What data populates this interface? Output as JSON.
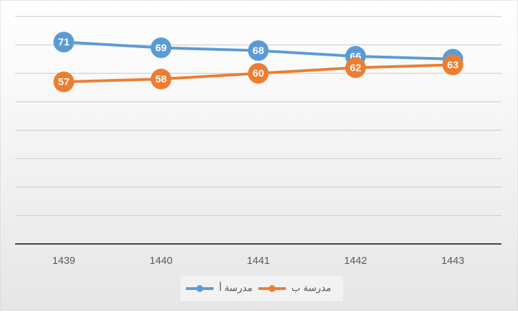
{
  "chart_data": {
    "type": "line",
    "categories": [
      "1439",
      "1440",
      "1441",
      "1442",
      "1443"
    ],
    "series": [
      {
        "name": "مدرسة أ",
        "color": "#5b9bd5",
        "values": [
          71,
          69,
          68,
          66,
          65
        ]
      },
      {
        "name": "مدرسة ب",
        "color": "#ed7d31",
        "values": [
          57,
          58,
          60,
          62,
          63
        ]
      }
    ],
    "ylim": [
      0,
      80
    ],
    "yticks": [
      0,
      10,
      20,
      30,
      40,
      50,
      60,
      70,
      80
    ],
    "grid": true,
    "legend": "bottom"
  }
}
